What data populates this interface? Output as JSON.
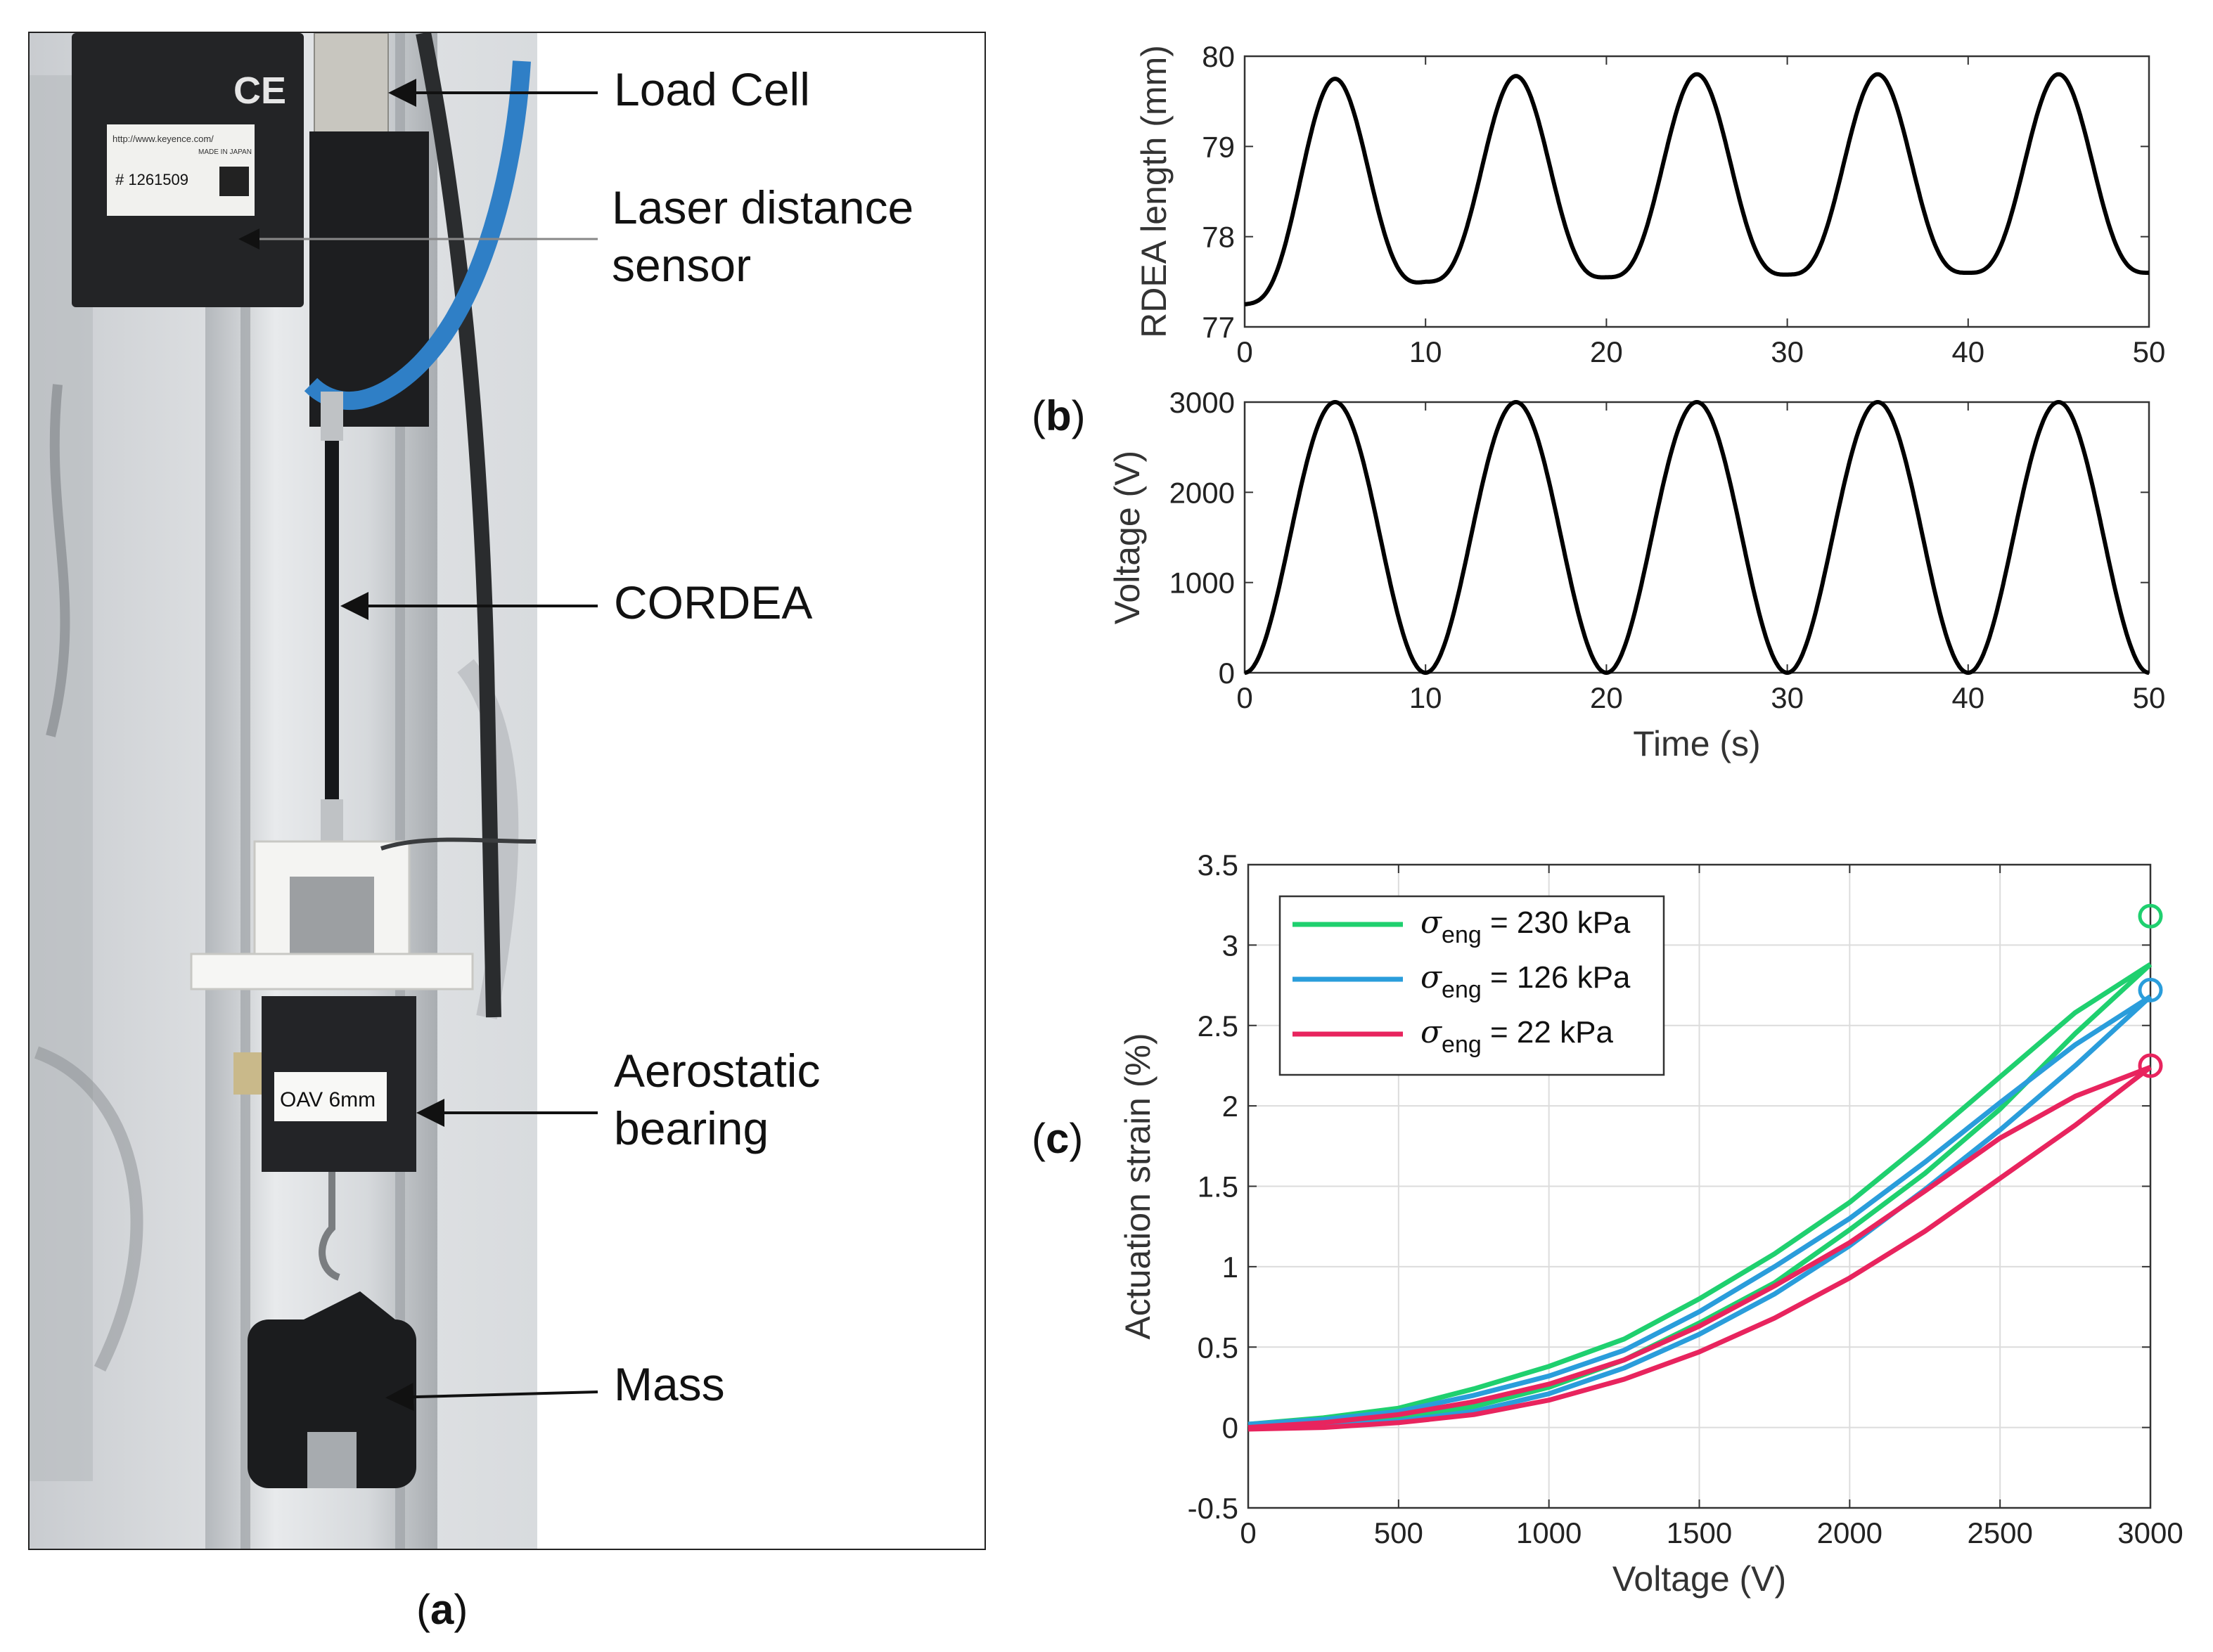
{
  "panels": {
    "a": {
      "paren_open": "(",
      "letter": "a",
      "paren_close": ")"
    },
    "b": {
      "paren_open": "(",
      "letter": "b",
      "paren_close": ")"
    },
    "c": {
      "paren_open": "(",
      "letter": "c",
      "paren_close": ")"
    }
  },
  "photo": {
    "annotations": {
      "load_cell": "Load Cell",
      "laser_line1": "Laser distance",
      "laser_line2": "sensor",
      "cordea": "CORDEA",
      "bearing_line1": "Aerostatic",
      "bearing_line2": "bearing",
      "mass": "Mass"
    },
    "device_text": {
      "ce_mark": "CE",
      "url": "http://www.keyence.com/",
      "made_in": "MADE IN JAPAN",
      "serial": "# 1261509",
      "bearing_label": "OAV 6mm"
    }
  },
  "colors": {
    "green": "#1fd06f",
    "blue": "#2a9ddb",
    "red": "#e8245e",
    "black": "#000000"
  },
  "chart_data": [
    {
      "id": "b-top",
      "type": "line",
      "title": "",
      "xlabel": "",
      "ylabel": "RDEA length (mm)",
      "xlim": [
        0,
        50
      ],
      "ylim": [
        77,
        80
      ],
      "xticks": [
        0,
        10,
        20,
        30,
        40,
        50
      ],
      "yticks": [
        77,
        78,
        79,
        80
      ],
      "series": [
        {
          "name": "RDEA length",
          "baseline_mm": [
            77.25,
            77.5,
            77.55,
            77.58,
            77.6,
            77.6
          ],
          "peak_mm": [
            79.75,
            79.78,
            79.8,
            79.8,
            79.8
          ],
          "peak_times_s": [
            5,
            15,
            25,
            35,
            45
          ],
          "valley_times_s": [
            0,
            10,
            20,
            30,
            40,
            50
          ]
        }
      ]
    },
    {
      "id": "b-bottom",
      "type": "line",
      "title": "",
      "xlabel": "Time (s)",
      "ylabel": "Voltage (V)",
      "xlim": [
        0,
        50
      ],
      "ylim": [
        0,
        3000
      ],
      "xticks": [
        0,
        10,
        20,
        30,
        40,
        50
      ],
      "yticks": [
        0,
        1000,
        2000,
        3000
      ],
      "series": [
        {
          "name": "Voltage",
          "amplitude_V": 3000,
          "period_s": 10,
          "form": "1500*(1-cos(2*pi*t/10))"
        }
      ]
    },
    {
      "id": "c",
      "type": "line",
      "title": "",
      "xlabel": "Voltage (V)",
      "ylabel": "Actuation strain (%)",
      "xlim": [
        0,
        3000
      ],
      "ylim": [
        -0.5,
        3.5
      ],
      "xticks": [
        0,
        500,
        1000,
        1500,
        2000,
        2500,
        3000
      ],
      "yticks": [
        -0.5,
        0,
        0.5,
        1,
        1.5,
        2,
        2.5,
        3,
        3.5
      ],
      "ytick_labels": [
        "-0.5",
        "0",
        "0.5",
        "1",
        "1.5",
        "2",
        "2.5",
        "3",
        "3.5"
      ],
      "grid": true,
      "legend_position": "top-left",
      "legend": [
        {
          "symbol": "σ",
          "sub": "eng",
          "rest": " = 230 kPa"
        },
        {
          "symbol": "σ",
          "sub": "eng",
          "rest": " = 126 kPa"
        },
        {
          "symbol": "σ",
          "sub": "eng",
          "rest": " = 22 kPa"
        }
      ],
      "series": [
        {
          "name": "230 kPa",
          "color": "#1fd06f",
          "upper": {
            "x": [
              0,
              250,
              500,
              750,
              1000,
              1250,
              1500,
              1750,
              2000,
              2250,
              2500,
              2750,
              3000
            ],
            "y": [
              0.02,
              0.06,
              0.12,
              0.24,
              0.38,
              0.55,
              0.8,
              1.08,
              1.4,
              1.78,
              2.18,
              2.58,
              2.88
            ]
          },
          "lower": {
            "x": [
              3000,
              2750,
              2500,
              2250,
              2000,
              1750,
              1500,
              1250,
              1000,
              750,
              500,
              250,
              0
            ],
            "y": [
              2.88,
              2.45,
              1.98,
              1.58,
              1.23,
              0.9,
              0.65,
              0.42,
              0.25,
              0.13,
              0.06,
              0.02,
              0.0
            ]
          },
          "marker": {
            "x": 3000,
            "y": 3.18
          }
        },
        {
          "name": "126 kPa",
          "color": "#2a9ddb",
          "upper": {
            "x": [
              0,
              250,
              500,
              750,
              1000,
              1250,
              1500,
              1750,
              2000,
              2250,
              2500,
              2750,
              3000
            ],
            "y": [
              0.02,
              0.05,
              0.1,
              0.2,
              0.32,
              0.48,
              0.72,
              1.0,
              1.3,
              1.65,
              2.02,
              2.38,
              2.68
            ]
          },
          "lower": {
            "x": [
              3000,
              2750,
              2500,
              2250,
              2000,
              1750,
              1500,
              1250,
              1000,
              750,
              500,
              250,
              0
            ],
            "y": [
              2.68,
              2.25,
              1.85,
              1.48,
              1.13,
              0.83,
              0.58,
              0.37,
              0.21,
              0.1,
              0.04,
              0.01,
              0.0
            ]
          },
          "marker": {
            "x": 3000,
            "y": 2.72
          }
        },
        {
          "name": "22 kPa",
          "color": "#e8245e",
          "upper": {
            "x": [
              0,
              250,
              500,
              750,
              1000,
              1250,
              1500,
              1750,
              2000,
              2250,
              2500,
              2750,
              3000
            ],
            "y": [
              0.0,
              0.03,
              0.08,
              0.16,
              0.27,
              0.42,
              0.63,
              0.88,
              1.15,
              1.47,
              1.8,
              2.06,
              2.24
            ]
          },
          "lower": {
            "x": [
              3000,
              2750,
              2500,
              2250,
              2000,
              1750,
              1500,
              1250,
              1000,
              750,
              500,
              250,
              0
            ],
            "y": [
              2.24,
              1.88,
              1.55,
              1.22,
              0.93,
              0.68,
              0.47,
              0.3,
              0.17,
              0.08,
              0.03,
              0.0,
              -0.01
            ]
          },
          "marker": {
            "x": 3000,
            "y": 2.25
          }
        }
      ]
    }
  ]
}
